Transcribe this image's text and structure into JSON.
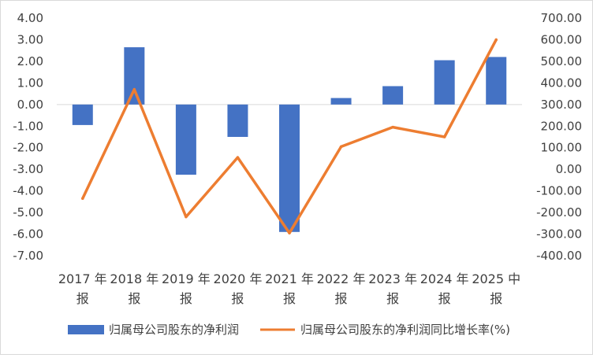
{
  "chart_data": {
    "type": "bar+line",
    "categories": [
      "2017 年报",
      "2018 年报",
      "2019 年报",
      "2020 年报",
      "2021 年报",
      "2022 年报",
      "2023 年报",
      "2024 年报",
      "2025 中报"
    ],
    "category_lines": [
      [
        "2017 年",
        "报"
      ],
      [
        "2018 年",
        "报"
      ],
      [
        "2019 年",
        "报"
      ],
      [
        "2020 年",
        "报"
      ],
      [
        "2021 年",
        "报"
      ],
      [
        "2022 年",
        "报"
      ],
      [
        "2023 年",
        "报"
      ],
      [
        "2024 年",
        "报"
      ],
      [
        "2025 中",
        "报"
      ]
    ],
    "series": [
      {
        "name": "归属母公司股东的净利润",
        "type": "bar",
        "axis": "left",
        "color": "#4472C4",
        "values": [
          -0.95,
          2.65,
          -3.25,
          -1.5,
          -5.9,
          0.3,
          0.85,
          2.05,
          2.2
        ]
      },
      {
        "name": "归属母公司股东的净利润同比增长率(%)",
        "type": "line",
        "axis": "right",
        "color": "#ED7D31",
        "values": [
          -135,
          370,
          -220,
          55,
          -295,
          105,
          195,
          150,
          600
        ]
      }
    ],
    "y_left": {
      "ylim": [
        -7,
        4
      ],
      "ticks": [
        "4.00",
        "3.00",
        "2.00",
        "1.00",
        "0.00",
        "-1.00",
        "-2.00",
        "-3.00",
        "-4.00",
        "-5.00",
        "-6.00",
        "-7.00"
      ]
    },
    "y_right": {
      "ylim": [
        -400,
        700
      ],
      "ticks": [
        "700.00",
        "600.00",
        "500.00",
        "400.00",
        "300.00",
        "200.00",
        "100.00",
        "0.00",
        "-100.00",
        "-200.00",
        "-300.00",
        "-400.00"
      ]
    },
    "grid": false,
    "legend_position": "bottom"
  }
}
